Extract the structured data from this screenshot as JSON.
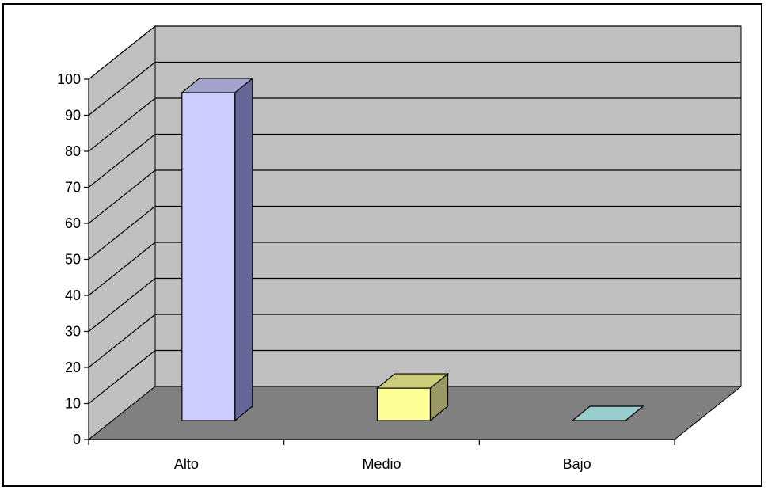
{
  "chart_data": {
    "type": "bar",
    "categories": [
      "Alto",
      "Medio",
      "Bajo"
    ],
    "values": [
      91,
      9,
      0
    ],
    "ylim": [
      0,
      100
    ],
    "yticks": [
      0,
      10,
      20,
      30,
      40,
      50,
      60,
      70,
      80,
      90,
      100
    ],
    "grid": true,
    "legend": "none",
    "colors": {
      "bars": [
        "#ccccff",
        "#ffff99",
        "#99cccc"
      ],
      "bar_sides": [
        "#666699",
        "#999966",
        "#669999"
      ],
      "bar_tops": [
        "#a3a3cc",
        "#cccc7a",
        "#7aa3a3"
      ],
      "wall": "#c0c0c0",
      "floor": "#808080",
      "grid": "#000000"
    }
  }
}
